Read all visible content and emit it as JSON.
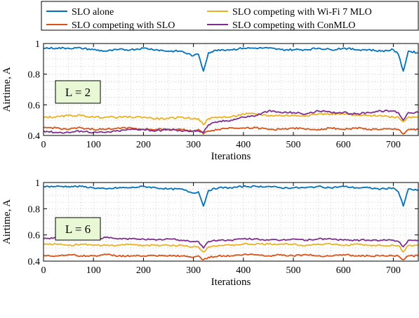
{
  "legend": {
    "placement": "top",
    "entries": [
      {
        "name": "SLO alone",
        "color": "#0072bd"
      },
      {
        "name": "SLO competing with Wi-Fi 7 MLO",
        "color": "#edb120"
      },
      {
        "name": "SLO competing with SLO",
        "color": "#d95319"
      },
      {
        "name": "SLO competing with ConMLO",
        "color": "#7e2f8e"
      }
    ]
  },
  "chart_data": [
    {
      "type": "line",
      "panel_label": "L = 2",
      "xlabel": "Iterations",
      "ylabel": "Airtime, A",
      "xlim": [
        0,
        750
      ],
      "ylim": [
        0.4,
        1.0
      ],
      "xticks": [
        "0",
        "100",
        "200",
        "300",
        "400",
        "500",
        "600",
        "700"
      ],
      "yticks": [
        "0.4",
        "0.6",
        "0.8",
        "1"
      ],
      "grid": true,
      "x": [
        0,
        25,
        50,
        75,
        100,
        125,
        150,
        175,
        200,
        225,
        250,
        275,
        300,
        310,
        320,
        330,
        350,
        375,
        400,
        425,
        450,
        475,
        500,
        525,
        550,
        575,
        600,
        625,
        650,
        675,
        700,
        710,
        720,
        730,
        750
      ],
      "series": [
        {
          "name": "SLO alone",
          "color": "#0072bd",
          "values": [
            0.97,
            0.97,
            0.97,
            0.97,
            0.96,
            0.95,
            0.96,
            0.96,
            0.97,
            0.96,
            0.95,
            0.95,
            0.92,
            0.93,
            0.82,
            0.94,
            0.96,
            0.96,
            0.97,
            0.97,
            0.97,
            0.96,
            0.96,
            0.96,
            0.97,
            0.96,
            0.97,
            0.96,
            0.96,
            0.95,
            0.96,
            0.93,
            0.82,
            0.95,
            0.94
          ]
        },
        {
          "name": "SLO competing with Wi-Fi 7 MLO",
          "color": "#edb120",
          "values": [
            0.52,
            0.52,
            0.53,
            0.53,
            0.52,
            0.52,
            0.52,
            0.52,
            0.52,
            0.51,
            0.51,
            0.52,
            0.51,
            0.51,
            0.47,
            0.51,
            0.52,
            0.52,
            0.54,
            0.54,
            0.53,
            0.53,
            0.53,
            0.53,
            0.54,
            0.54,
            0.54,
            0.53,
            0.53,
            0.53,
            0.52,
            0.52,
            0.49,
            0.52,
            0.52
          ]
        },
        {
          "name": "SLO competing with SLO",
          "color": "#d95319",
          "values": [
            0.45,
            0.45,
            0.44,
            0.45,
            0.44,
            0.44,
            0.45,
            0.45,
            0.44,
            0.44,
            0.44,
            0.44,
            0.43,
            0.44,
            0.41,
            0.43,
            0.44,
            0.45,
            0.45,
            0.45,
            0.44,
            0.44,
            0.45,
            0.44,
            0.44,
            0.45,
            0.44,
            0.45,
            0.44,
            0.44,
            0.44,
            0.44,
            0.41,
            0.44,
            0.44
          ]
        },
        {
          "name": "SLO competing with ConMLO",
          "color": "#7e2f8e",
          "values": [
            0.43,
            0.42,
            0.42,
            0.43,
            0.42,
            0.42,
            0.43,
            0.44,
            0.44,
            0.43,
            0.44,
            0.43,
            0.43,
            0.43,
            0.42,
            0.47,
            0.49,
            0.5,
            0.52,
            0.53,
            0.56,
            0.55,
            0.55,
            0.54,
            0.56,
            0.55,
            0.55,
            0.54,
            0.55,
            0.56,
            0.56,
            0.55,
            0.5,
            0.55,
            0.55
          ]
        }
      ]
    },
    {
      "type": "line",
      "panel_label": "L = 6",
      "xlabel": "Iterations",
      "ylabel": "Airtime, A",
      "xlim": [
        0,
        750
      ],
      "ylim": [
        0.4,
        1.0
      ],
      "xticks": [
        "0",
        "100",
        "200",
        "300",
        "400",
        "500",
        "600",
        "700"
      ],
      "yticks": [
        "0.4",
        "0.6",
        "0.8",
        "1"
      ],
      "grid": true,
      "x": [
        0,
        25,
        50,
        75,
        100,
        125,
        150,
        175,
        200,
        225,
        250,
        275,
        300,
        310,
        320,
        330,
        350,
        375,
        400,
        425,
        450,
        475,
        500,
        525,
        550,
        575,
        600,
        625,
        650,
        675,
        700,
        710,
        720,
        730,
        750
      ],
      "series": [
        {
          "name": "SLO alone",
          "color": "#0072bd",
          "values": [
            0.97,
            0.97,
            0.97,
            0.97,
            0.96,
            0.95,
            0.96,
            0.96,
            0.97,
            0.96,
            0.95,
            0.95,
            0.92,
            0.93,
            0.82,
            0.94,
            0.96,
            0.96,
            0.97,
            0.97,
            0.97,
            0.96,
            0.96,
            0.96,
            0.97,
            0.96,
            0.97,
            0.96,
            0.96,
            0.95,
            0.96,
            0.93,
            0.82,
            0.95,
            0.94
          ]
        },
        {
          "name": "SLO competing with Wi-Fi 7 MLO",
          "color": "#edb120",
          "values": [
            0.53,
            0.53,
            0.52,
            0.53,
            0.52,
            0.52,
            0.52,
            0.53,
            0.52,
            0.52,
            0.52,
            0.52,
            0.51,
            0.51,
            0.47,
            0.51,
            0.52,
            0.52,
            0.53,
            0.53,
            0.53,
            0.53,
            0.53,
            0.52,
            0.53,
            0.53,
            0.52,
            0.53,
            0.52,
            0.52,
            0.52,
            0.52,
            0.47,
            0.52,
            0.52
          ]
        },
        {
          "name": "SLO competing with SLO",
          "color": "#d95319",
          "values": [
            0.44,
            0.44,
            0.45,
            0.44,
            0.44,
            0.45,
            0.44,
            0.44,
            0.44,
            0.44,
            0.44,
            0.44,
            0.43,
            0.44,
            0.41,
            0.43,
            0.44,
            0.44,
            0.45,
            0.45,
            0.44,
            0.45,
            0.44,
            0.45,
            0.44,
            0.44,
            0.45,
            0.44,
            0.44,
            0.44,
            0.44,
            0.44,
            0.41,
            0.44,
            0.44
          ]
        },
        {
          "name": "SLO competing with ConMLO",
          "color": "#7e2f8e",
          "values": [
            0.57,
            0.58,
            0.58,
            0.57,
            0.57,
            0.58,
            0.57,
            0.57,
            0.57,
            0.56,
            0.57,
            0.56,
            0.55,
            0.55,
            0.5,
            0.55,
            0.56,
            0.56,
            0.57,
            0.57,
            0.56,
            0.56,
            0.57,
            0.56,
            0.57,
            0.57,
            0.56,
            0.56,
            0.56,
            0.56,
            0.56,
            0.55,
            0.51,
            0.56,
            0.56
          ]
        }
      ]
    }
  ]
}
